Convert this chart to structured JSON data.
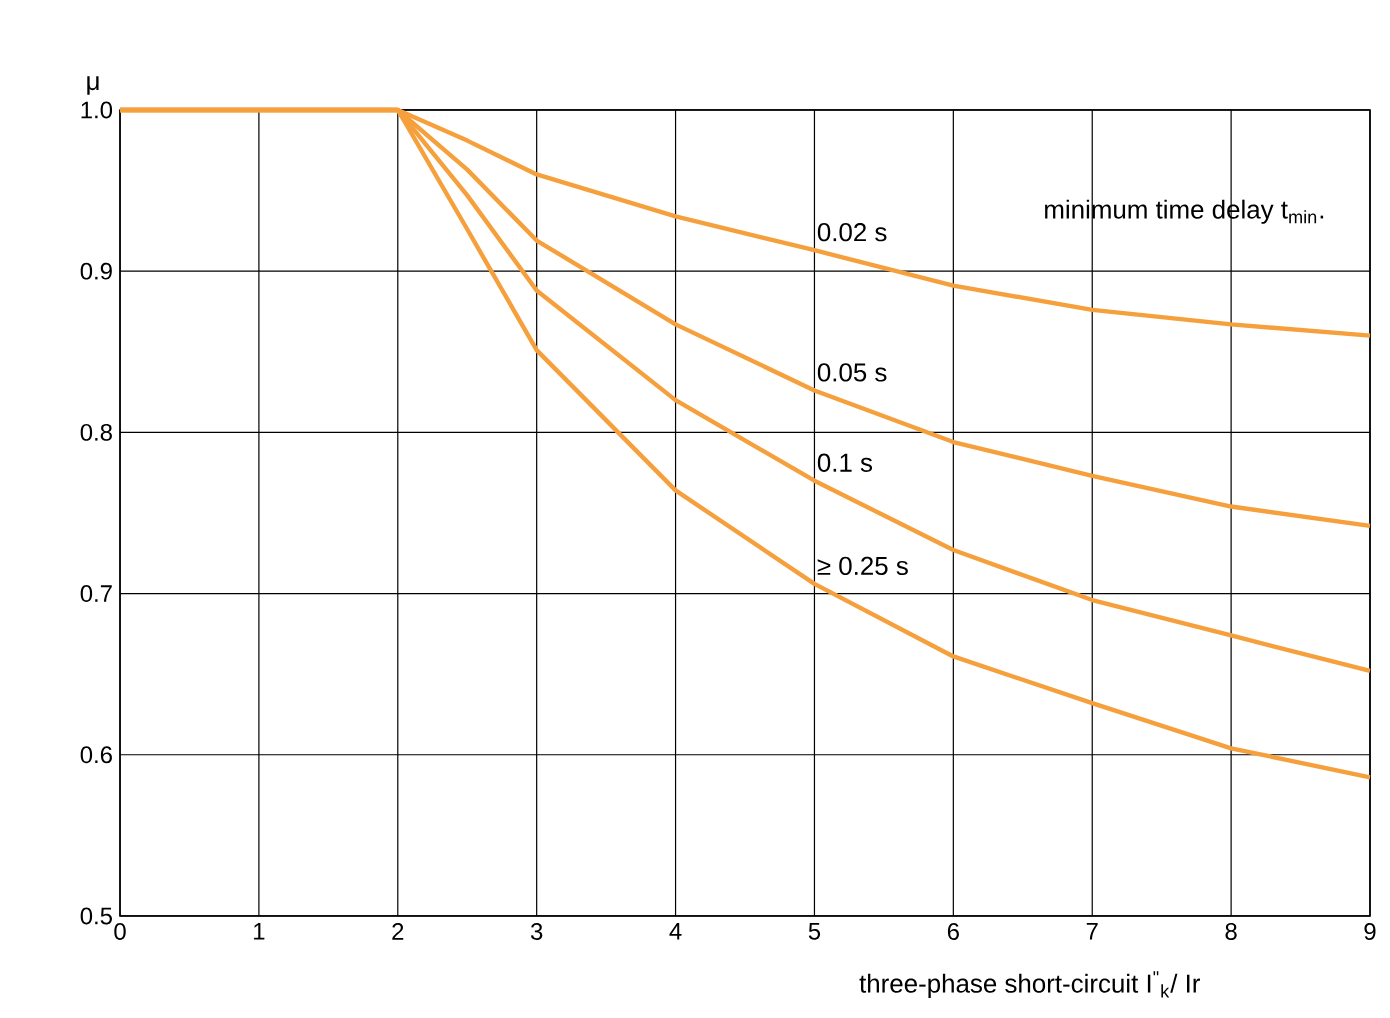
{
  "chart_data": {
    "type": "line",
    "xlabel": "three-phase short-circuit I$^{\"}$$_{k}$/ Ir",
    "ylabel": "μ",
    "annotations": [
      "minimum time delay t$_{min}$."
    ],
    "x": [
      0,
      2,
      2.5,
      3,
      4,
      5,
      6,
      7,
      8,
      9
    ],
    "series": [
      {
        "name": "0.02 s",
        "color": "#f5a03c",
        "values": [
          1.0,
          1.0,
          0.981,
          0.96,
          0.934,
          0.913,
          0.891,
          0.876,
          0.867,
          0.86
        ]
      },
      {
        "name": "0.05 s",
        "color": "#f5a03c",
        "values": [
          1.0,
          1.0,
          0.963,
          0.919,
          0.867,
          0.826,
          0.794,
          0.773,
          0.754,
          0.742
        ]
      },
      {
        "name": "0.1 s",
        "color": "#f5a03c",
        "values": [
          1.0,
          1.0,
          0.947,
          0.888,
          0.82,
          0.77,
          0.727,
          0.696,
          0.674,
          0.652
        ]
      },
      {
        "name": "≥ 0.25 s",
        "color": "#f5a03c",
        "values": [
          1.0,
          1.0,
          0.926,
          0.851,
          0.764,
          0.706,
          0.661,
          0.632,
          0.604,
          0.586
        ]
      }
    ],
    "xlim": [
      0,
      9
    ],
    "ylim": [
      0.5,
      1.0
    ],
    "xticks": [
      0,
      1,
      2,
      3,
      4,
      5,
      6,
      7,
      8,
      9
    ],
    "yticks": [
      0.5,
      0.6,
      0.7,
      0.8,
      0.9,
      {
        "value": 1.0,
        "label": "1.0"
      }
    ],
    "grid": true,
    "legend": false,
    "marker": "none",
    "line_style": "solid"
  }
}
